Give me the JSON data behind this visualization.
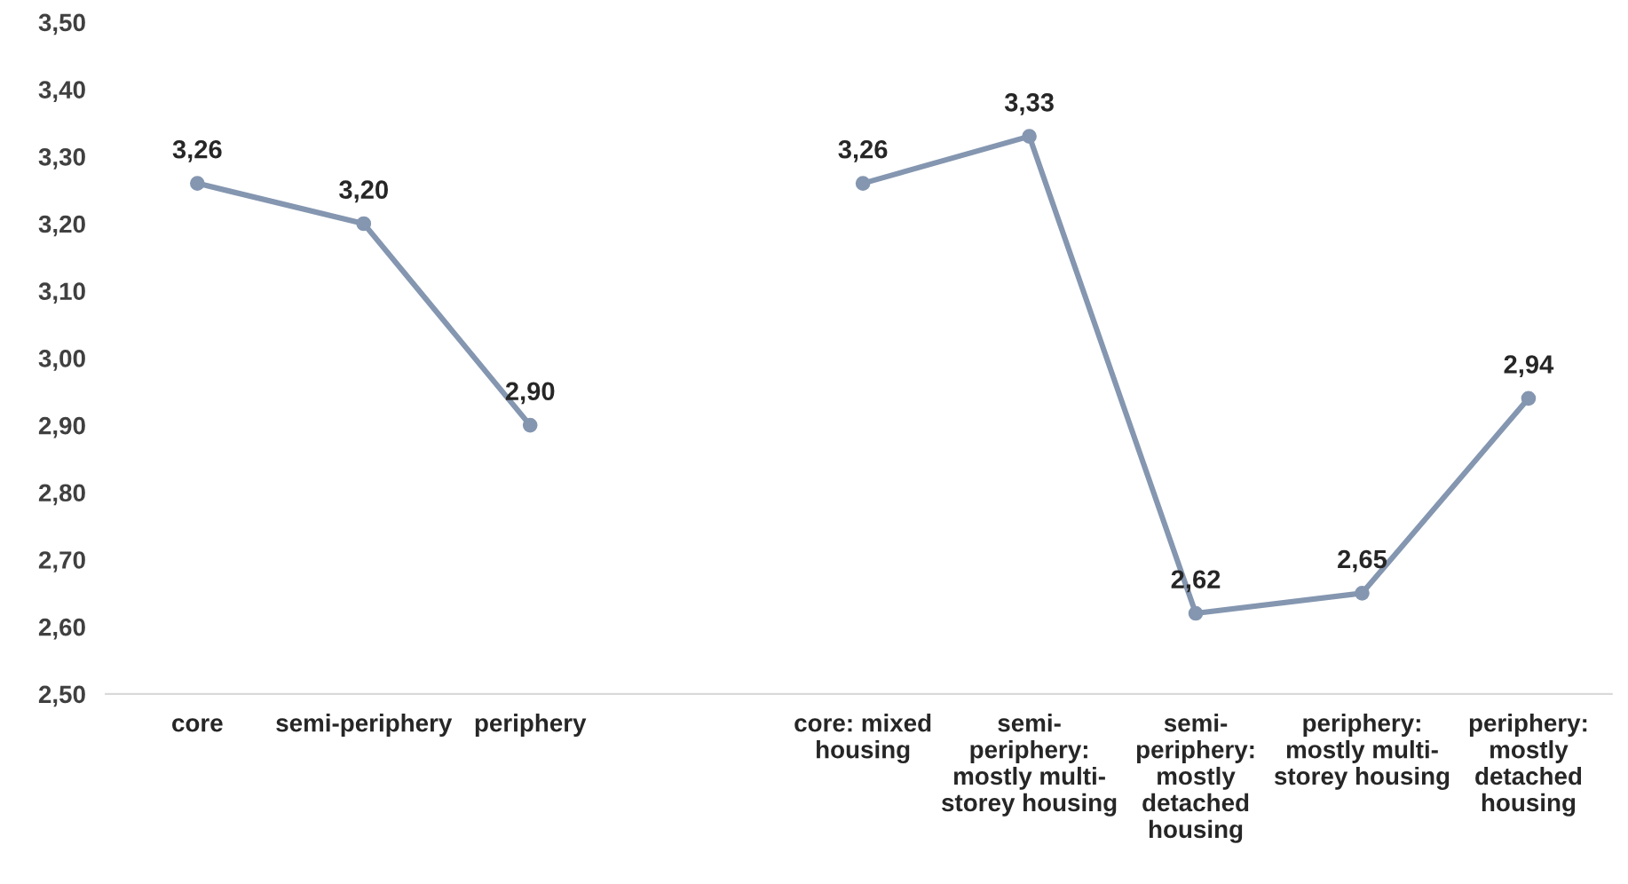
{
  "chart_data": {
    "type": "line",
    "categories": [
      "core",
      "semi-periphery",
      "periphery",
      null,
      "core: mixed\nhousing",
      "semi-\nperiphery:\nmostly multi-\nstorey housing",
      "semi-\nperiphery:\nmostly\ndetached\nhousing",
      "periphery:\nmostly multi-\nstorey housing",
      "periphery:\nmostly\ndetached\nhousing"
    ],
    "series": [
      {
        "color": "#8496b0",
        "values": [
          3.26,
          3.2,
          2.9,
          null,
          3.26,
          3.33,
          2.62,
          2.65,
          2.94
        ],
        "value_labels": [
          "3,26",
          "3,20",
          "2,90",
          null,
          "3,26",
          "3,33",
          "2,62",
          "2,65",
          "2,94"
        ]
      }
    ],
    "ylim": [
      2.5,
      3.5
    ],
    "yticks": [
      {
        "value": 2.5,
        "label": "2,50"
      },
      {
        "value": 2.6,
        "label": "2,60"
      },
      {
        "value": 2.7,
        "label": "2,70"
      },
      {
        "value": 2.8,
        "label": "2,80"
      },
      {
        "value": 2.9,
        "label": "2,90"
      },
      {
        "value": 3.0,
        "label": "3,00"
      },
      {
        "value": 3.1,
        "label": "3,10"
      },
      {
        "value": 3.2,
        "label": "3,20"
      },
      {
        "value": 3.3,
        "label": "3,30"
      },
      {
        "value": 3.4,
        "label": "3,40"
      },
      {
        "value": 3.5,
        "label": "3,50"
      }
    ],
    "marker": "circle",
    "line_style": "solid",
    "grid": false,
    "legend": false
  }
}
